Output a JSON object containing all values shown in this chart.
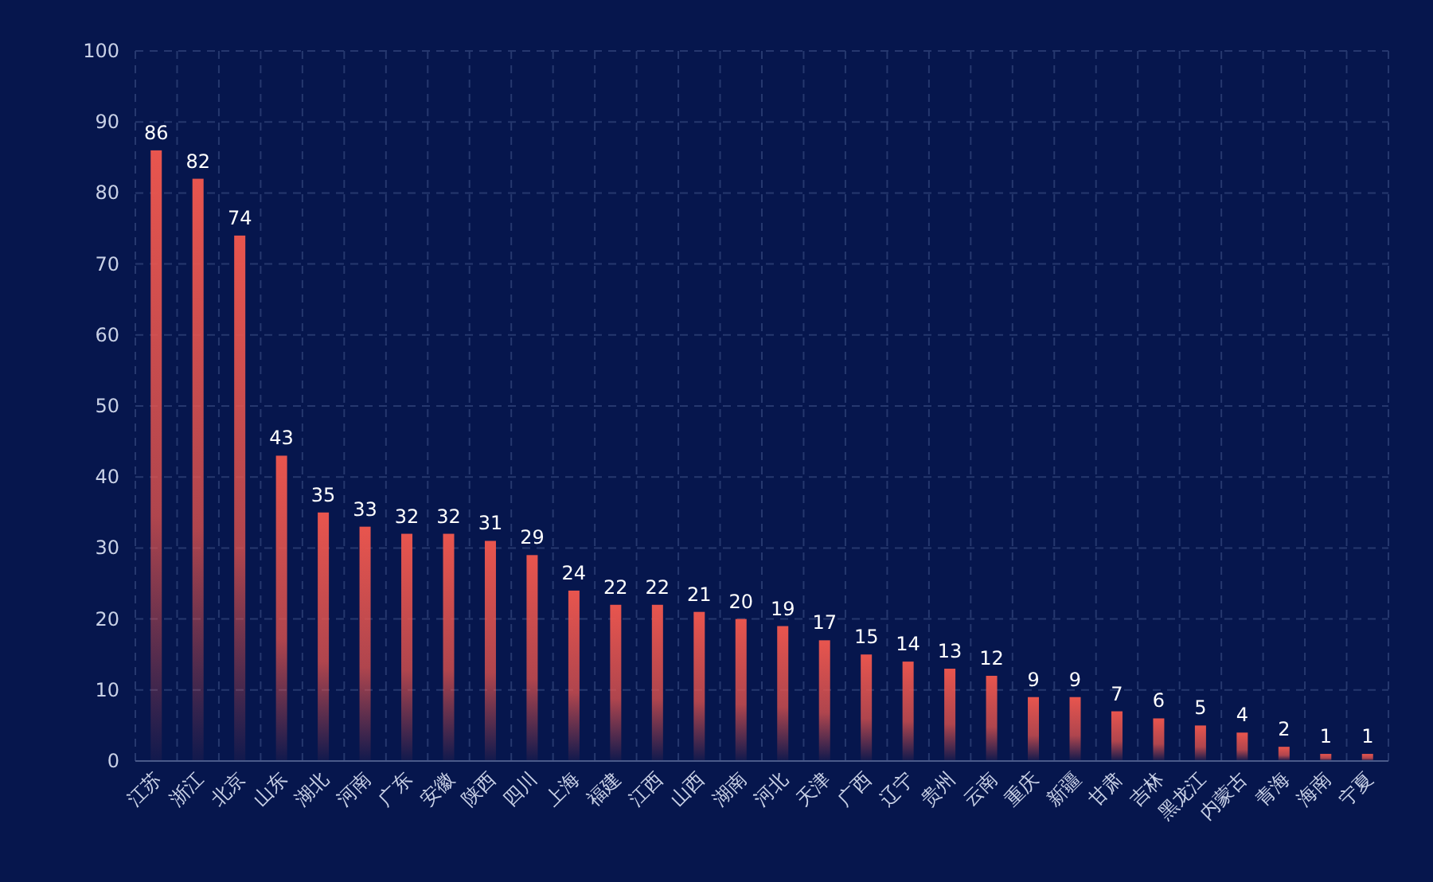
{
  "chart_data": {
    "type": "bar",
    "categories": [
      "江苏",
      "浙江",
      "北京",
      "山东",
      "湖北",
      "河南",
      "广东",
      "安徽",
      "陕西",
      "四川",
      "上海",
      "福建",
      "江西",
      "山西",
      "湖南",
      "河北",
      "天津",
      "广西",
      "辽宁",
      "贵州",
      "云南",
      "重庆",
      "新疆",
      "甘肃",
      "吉林",
      "黑龙江",
      "内蒙古",
      "青海",
      "海南",
      "宁夏"
    ],
    "values": [
      86,
      82,
      74,
      43,
      35,
      33,
      32,
      32,
      31,
      29,
      24,
      22,
      22,
      21,
      20,
      19,
      17,
      15,
      14,
      13,
      12,
      9,
      9,
      7,
      6,
      5,
      4,
      2,
      1,
      1
    ],
    "color": "#e8554e",
    "ylim": [
      0,
      100
    ],
    "yticks": [
      0,
      10,
      20,
      30,
      40,
      50,
      60,
      70,
      80,
      90,
      100
    ],
    "grid": true,
    "data_labels": true
  }
}
